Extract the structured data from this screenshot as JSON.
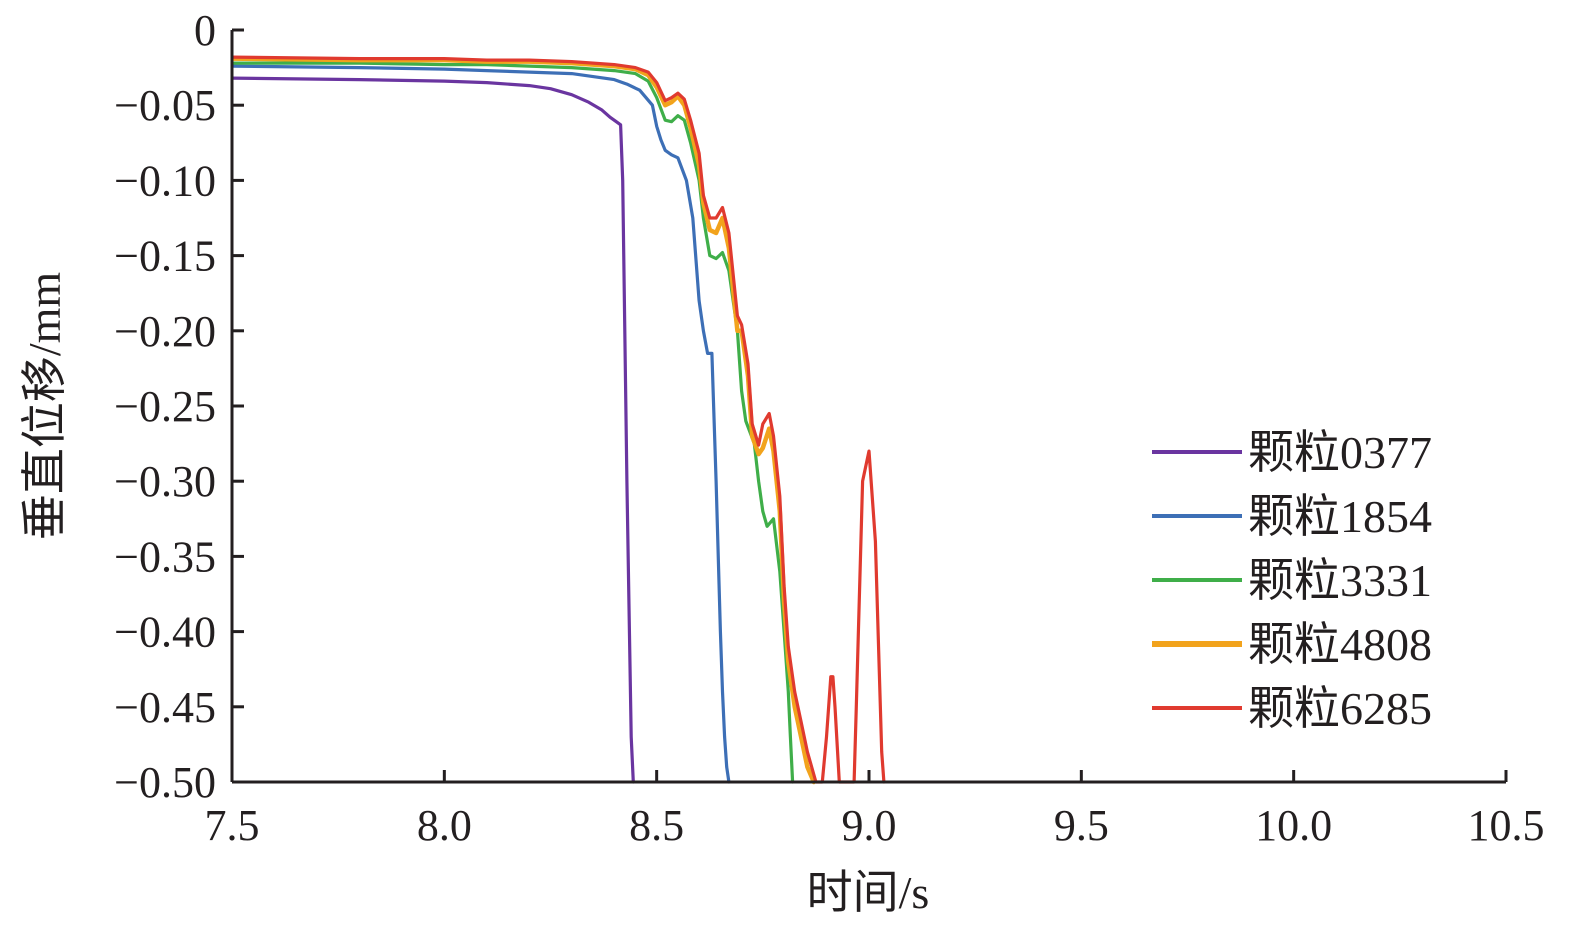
{
  "chart_data": {
    "type": "line",
    "xlabel": "时间/s",
    "ylabel": "垂直位移/mm",
    "xlim": [
      7.5,
      10.5
    ],
    "ylim": [
      -0.5,
      0
    ],
    "xticks": [
      7.5,
      8.0,
      8.5,
      9.0,
      9.5,
      10.0,
      10.5
    ],
    "xtick_labels": [
      "7.5",
      "8.0",
      "8.5",
      "9.0",
      "9.5",
      "10.0",
      "10.5"
    ],
    "yticks": [
      0,
      -0.05,
      -0.1,
      -0.15,
      -0.2,
      -0.25,
      -0.3,
      -0.35,
      -0.4,
      -0.45,
      -0.5
    ],
    "ytick_labels": [
      "0",
      "−0.05",
      "−0.10",
      "−0.15",
      "−0.20",
      "−0.25",
      "−0.30",
      "−0.35",
      "−0.40",
      "−0.45",
      "−0.50"
    ],
    "grid": false,
    "legend_position": "right",
    "series": [
      {
        "name": "颗粒0377",
        "color": "#6a35a0",
        "x": [
          7.5,
          7.8,
          8.0,
          8.1,
          8.2,
          8.25,
          8.3,
          8.34,
          8.37,
          8.39,
          8.405,
          8.415,
          8.42,
          8.43,
          8.44,
          8.445
        ],
        "y": [
          -0.032,
          -0.033,
          -0.034,
          -0.035,
          -0.037,
          -0.039,
          -0.043,
          -0.048,
          -0.053,
          -0.058,
          -0.061,
          -0.063,
          -0.1,
          -0.3,
          -0.47,
          -0.5
        ]
      },
      {
        "name": "颗粒1854",
        "color": "#3d6fb6",
        "x": [
          7.5,
          7.8,
          8.0,
          8.1,
          8.2,
          8.3,
          8.35,
          8.4,
          8.43,
          8.46,
          8.49,
          8.5,
          8.51,
          8.52,
          8.535,
          8.55,
          8.57,
          8.585,
          8.6,
          8.61,
          8.62,
          8.63,
          8.64,
          8.65,
          8.655,
          8.66,
          8.665,
          8.67
        ],
        "y": [
          -0.024,
          -0.025,
          -0.026,
          -0.027,
          -0.028,
          -0.029,
          -0.031,
          -0.033,
          -0.036,
          -0.04,
          -0.05,
          -0.064,
          -0.073,
          -0.08,
          -0.083,
          -0.085,
          -0.1,
          -0.125,
          -0.18,
          -0.2,
          -0.215,
          -0.215,
          -0.3,
          -0.4,
          -0.44,
          -0.47,
          -0.49,
          -0.5
        ]
      },
      {
        "name": "颗粒3331",
        "color": "#3fae49",
        "x": [
          7.5,
          7.8,
          8.0,
          8.1,
          8.2,
          8.3,
          8.4,
          8.45,
          8.48,
          8.5,
          8.52,
          8.535,
          8.55,
          8.565,
          8.58,
          8.6,
          8.61,
          8.625,
          8.64,
          8.655,
          8.67,
          8.69,
          8.7,
          8.71,
          8.73,
          8.74,
          8.75,
          8.76,
          8.775,
          8.79,
          8.8,
          8.81,
          8.815,
          8.82
        ],
        "y": [
          -0.022,
          -0.022,
          -0.023,
          -0.023,
          -0.024,
          -0.025,
          -0.027,
          -0.029,
          -0.034,
          -0.045,
          -0.06,
          -0.061,
          -0.057,
          -0.06,
          -0.075,
          -0.1,
          -0.125,
          -0.15,
          -0.152,
          -0.148,
          -0.16,
          -0.2,
          -0.24,
          -0.26,
          -0.275,
          -0.3,
          -0.32,
          -0.33,
          -0.325,
          -0.36,
          -0.4,
          -0.44,
          -0.47,
          -0.5
        ]
      },
      {
        "name": "颗粒4808",
        "color": "#f2a31c",
        "x": [
          7.5,
          7.8,
          8.0,
          8.1,
          8.2,
          8.3,
          8.4,
          8.45,
          8.48,
          8.5,
          8.52,
          8.535,
          8.55,
          8.565,
          8.58,
          8.6,
          8.61,
          8.625,
          8.64,
          8.655,
          8.67,
          8.69,
          8.7,
          8.715,
          8.725,
          8.74,
          8.75,
          8.765,
          8.775,
          8.79,
          8.8,
          8.81,
          8.825,
          8.84,
          8.855,
          8.87
        ],
        "y": [
          -0.019,
          -0.02,
          -0.02,
          -0.021,
          -0.021,
          -0.022,
          -0.024,
          -0.026,
          -0.03,
          -0.038,
          -0.05,
          -0.048,
          -0.044,
          -0.05,
          -0.065,
          -0.09,
          -0.115,
          -0.133,
          -0.135,
          -0.125,
          -0.145,
          -0.2,
          -0.2,
          -0.23,
          -0.27,
          -0.282,
          -0.278,
          -0.265,
          -0.28,
          -0.32,
          -0.38,
          -0.42,
          -0.45,
          -0.47,
          -0.49,
          -0.5
        ]
      },
      {
        "name": "颗粒6285",
        "color": "#e03a2f",
        "x": [
          7.5,
          7.8,
          8.0,
          8.1,
          8.2,
          8.3,
          8.4,
          8.45,
          8.48,
          8.5,
          8.52,
          8.535,
          8.55,
          8.565,
          8.58,
          8.6,
          8.61,
          8.625,
          8.64,
          8.655,
          8.67,
          8.69,
          8.7,
          8.715,
          8.725,
          8.74,
          8.75,
          8.765,
          8.775,
          8.79,
          8.8,
          8.81,
          8.825,
          8.84,
          8.855,
          8.87,
          8.875,
          8.88,
          8.89,
          8.9,
          8.91,
          8.915,
          8.92,
          8.93,
          8.94,
          8.95,
          8.96,
          8.965,
          8.97,
          8.985,
          9.0,
          9.015,
          9.03,
          9.035
        ],
        "y": [
          -0.018,
          -0.019,
          -0.019,
          -0.02,
          -0.02,
          -0.021,
          -0.023,
          -0.025,
          -0.028,
          -0.035,
          -0.047,
          -0.045,
          -0.042,
          -0.046,
          -0.06,
          -0.082,
          -0.11,
          -0.125,
          -0.125,
          -0.118,
          -0.135,
          -0.19,
          -0.196,
          -0.222,
          -0.262,
          -0.276,
          -0.262,
          -0.255,
          -0.27,
          -0.31,
          -0.37,
          -0.41,
          -0.44,
          -0.46,
          -0.48,
          -0.495,
          -0.5,
          -0.5,
          -0.5,
          -0.47,
          -0.43,
          -0.43,
          -0.45,
          -0.5,
          -0.5,
          -0.5,
          -0.5,
          -0.5,
          -0.45,
          -0.3,
          -0.28,
          -0.34,
          -0.48,
          -0.5
        ]
      }
    ]
  }
}
